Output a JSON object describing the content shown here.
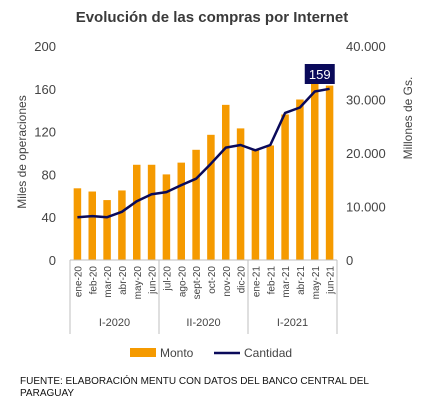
{
  "chart_data": {
    "type": "bar+line",
    "title": "Evolución  de las compras  por Internet",
    "categories": [
      "ene-20",
      "feb-20",
      "mar-20",
      "abr-20",
      "may-20",
      "jun-20",
      "jul-20",
      "ago-20",
      "sept-20",
      "oct-20",
      "nov-20",
      "dic-20",
      "ene-21",
      "feb-21",
      "mar-21",
      "abr-21",
      "may-21",
      "jun-21"
    ],
    "groups": [
      {
        "label": "I-2020",
        "count": 6
      },
      {
        "label": "II-2020",
        "count": 6
      },
      {
        "label": "I-2021",
        "count": 6
      }
    ],
    "series": [
      {
        "name": "Monto",
        "type": "bar",
        "axis": "left",
        "color": "#F59A00",
        "values": [
          67,
          64,
          56,
          65,
          89,
          89,
          80,
          91,
          103,
          117,
          145,
          123,
          103,
          107,
          136,
          150,
          168,
          163
        ]
      },
      {
        "name": "Cantidad",
        "type": "line",
        "axis": "right",
        "color": "#0A0A5A",
        "values": [
          8000,
          8200,
          8000,
          9000,
          11000,
          12300,
          12700,
          14000,
          15200,
          18000,
          21000,
          21500,
          20500,
          21500,
          27500,
          28500,
          31500,
          32000
        ]
      }
    ],
    "ylabel_left": "Miles de operaciones",
    "ylabel_right": "Millones de Gs.",
    "yticks_left": [
      "0",
      "40",
      "80",
      "120",
      "160",
      "200"
    ],
    "yticks_right": [
      "0",
      "10.000",
      "20.000",
      "30.000",
      "40.000"
    ],
    "ylim_left": [
      0,
      200
    ],
    "ylim_right": [
      0,
      40000
    ],
    "annotation": {
      "text": "159",
      "bg": "#0A0A5A",
      "color": "#ffffff"
    },
    "legend": [
      {
        "label": "Monto",
        "color": "#F59A00",
        "shape": "box"
      },
      {
        "label": "Cantidad",
        "color": "#0A0A5A",
        "shape": "line"
      }
    ],
    "legend_position": "bottom",
    "grid": false
  },
  "footer": {
    "source": "FUENTE: ELABORACIÓN MENTU CON DATOS DEL BANCO CENTRAL DEL PARAGUAY"
  }
}
